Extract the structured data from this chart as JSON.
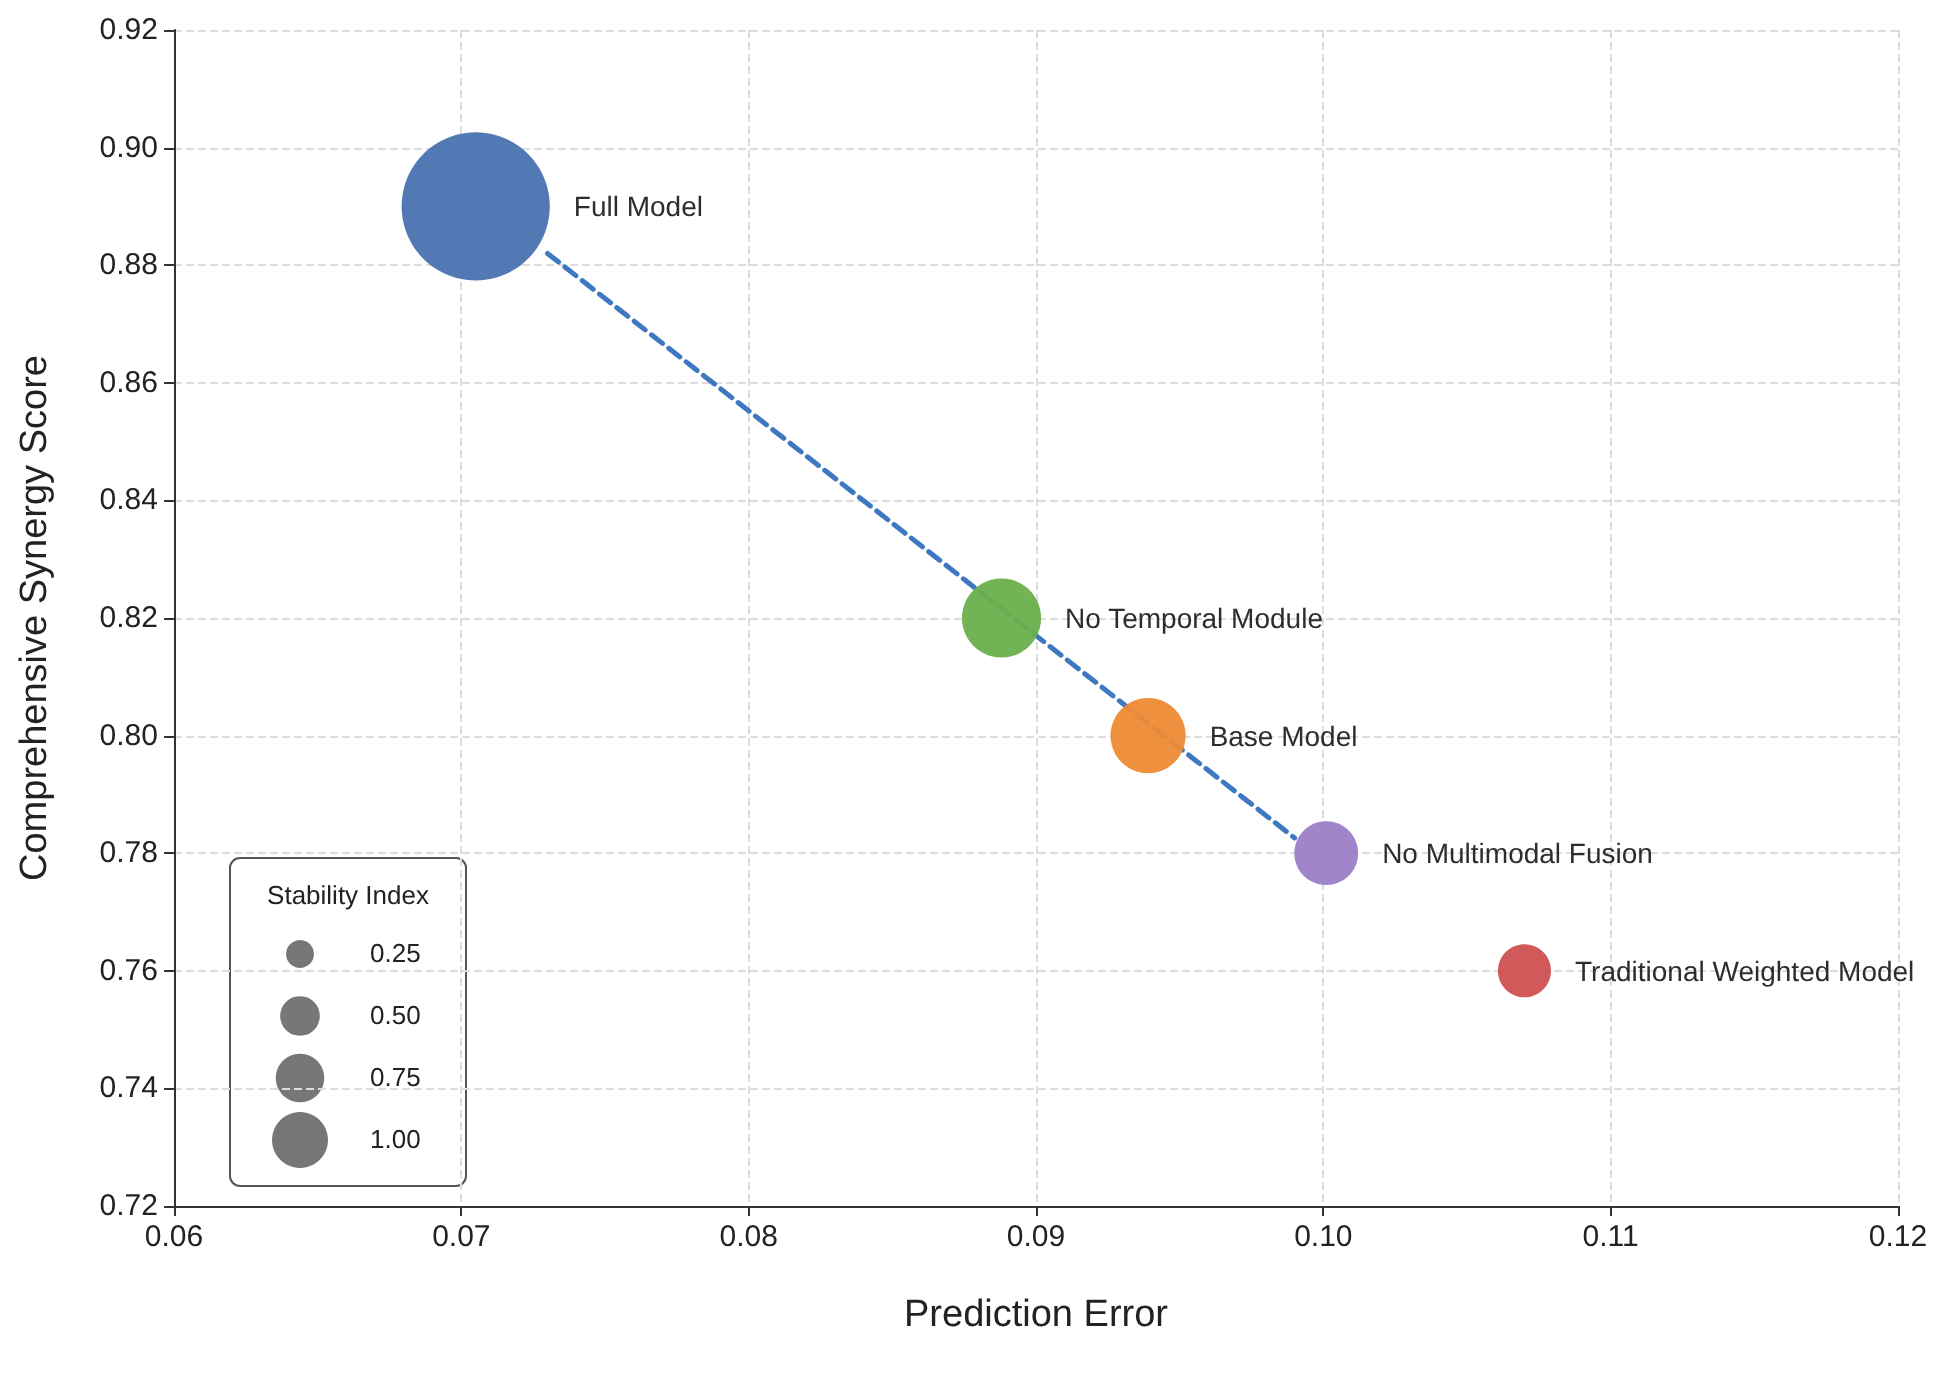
{
  "chart_data": {
    "type": "bubble",
    "xlabel": "Prediction Error",
    "ylabel": "Comprehensive Synergy Score",
    "legend_title": "Stability Index",
    "size_legend": [
      {
        "value": 0.25,
        "label": "0.25"
      },
      {
        "value": 0.5,
        "label": "0.50"
      },
      {
        "value": 0.75,
        "label": "0.75"
      },
      {
        "value": 1,
        "label": "1.00"
      }
    ],
    "grid": true,
    "marker": "circle",
    "xlim": [
      0.06,
      0.12
    ],
    "xticks": [
      {
        "value": 0.06,
        "label": "0.06"
      },
      {
        "value": 0.07,
        "label": "0.07"
      },
      {
        "value": 0.08,
        "label": "0.08"
      },
      {
        "value": 0.09,
        "label": "0.09"
      },
      {
        "value": 0.1,
        "label": "0.10"
      },
      {
        "value": 0.11,
        "label": "0.11"
      },
      {
        "value": 0.12,
        "label": "0.12"
      }
    ],
    "ylim": [
      0.72,
      0.92
    ],
    "yticks": [
      {
        "value": 0.72,
        "label": "0.72"
      },
      {
        "value": 0.74,
        "label": "0.74"
      },
      {
        "value": 0.76,
        "label": "0.76"
      },
      {
        "value": 0.78,
        "label": "0.78"
      },
      {
        "value": 0.8,
        "label": "0.80"
      },
      {
        "value": 0.82,
        "label": "0.82"
      },
      {
        "value": 0.84,
        "label": "0.84"
      },
      {
        "value": 0.86,
        "label": "0.86"
      },
      {
        "value": 0.88,
        "label": "0.88"
      },
      {
        "value": 0.9,
        "label": "0.90"
      },
      {
        "value": 0.92,
        "label": "0.92"
      }
    ],
    "series": [
      {
        "type": "line",
        "color": "#3d78c0",
        "line_style": "dashed",
        "marker": "none",
        "x": [
          0.073,
          0.099
        ],
        "values": [
          0.882,
          0.7826
        ]
      },
      {
        "name": "Full Model",
        "color": "#4a72b0",
        "x": [
          0.0705
        ],
        "values": [
          0.89
        ],
        "sizes": [
          7.0
        ]
      },
      {
        "name": "No Temporal Module",
        "color": "#6ab04c",
        "x": [
          0.0888
        ],
        "values": [
          0.82
        ],
        "sizes": [
          2.0
        ]
      },
      {
        "name": "Base Model",
        "color": "#ee8a35",
        "x": [
          0.0939
        ],
        "values": [
          0.8
        ],
        "sizes": [
          1.8
        ]
      },
      {
        "name": "No Multimodal Fusion",
        "color": "#9b7ec8",
        "x": [
          0.1001
        ],
        "values": [
          0.78
        ],
        "sizes": [
          1.3
        ]
      },
      {
        "name": "Traditional Weighted Model",
        "color": "#d05050",
        "x": [
          0.107
        ],
        "values": [
          0.76
        ],
        "sizes": [
          0.9
        ]
      }
    ]
  }
}
